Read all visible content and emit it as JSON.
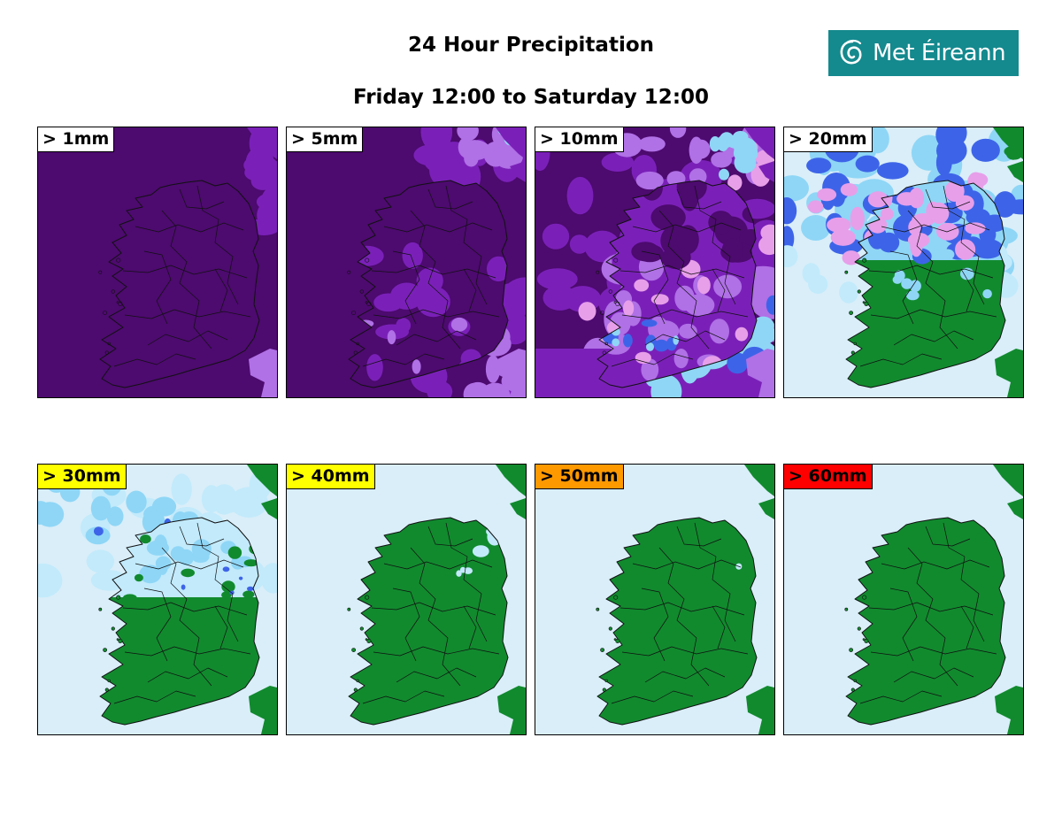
{
  "title": "24 Hour Precipitation",
  "subtitle": "Friday 12:00 to Saturday 12:00",
  "logo": {
    "text": "Met Éireann",
    "icon": "met-eireann-swirl-icon"
  },
  "colors": {
    "sea_dry": "#d9eef9",
    "land_dry": "#118a2e",
    "deep_purple": "#4d0a6f",
    "purple": "#7a20b8",
    "violet": "#b070e6",
    "pink": "#e79fe9",
    "blue": "#3d64e8",
    "light_blue": "#8fd6f6",
    "pale_blue": "#c2eafb"
  },
  "panels": [
    {
      "label": "> 1mm",
      "label_bg": "#ffffff",
      "coverage": "full"
    },
    {
      "label": "> 5mm",
      "label_bg": "#ffffff",
      "coverage": "almost-full"
    },
    {
      "label": "> 10mm",
      "label_bg": "#ffffff",
      "coverage": "most"
    },
    {
      "label": "> 20mm",
      "label_bg": "#ffffff",
      "coverage": "north-half"
    },
    {
      "label": "> 30mm",
      "label_bg": "#ffff00",
      "coverage": "north-patchy"
    },
    {
      "label": "> 40mm",
      "label_bg": "#ffff00",
      "coverage": "isolated"
    },
    {
      "label": "> 50mm",
      "label_bg": "#ff9900",
      "coverage": "trace"
    },
    {
      "label": "> 60mm",
      "label_bg": "#ff0000",
      "coverage": "none"
    }
  ]
}
